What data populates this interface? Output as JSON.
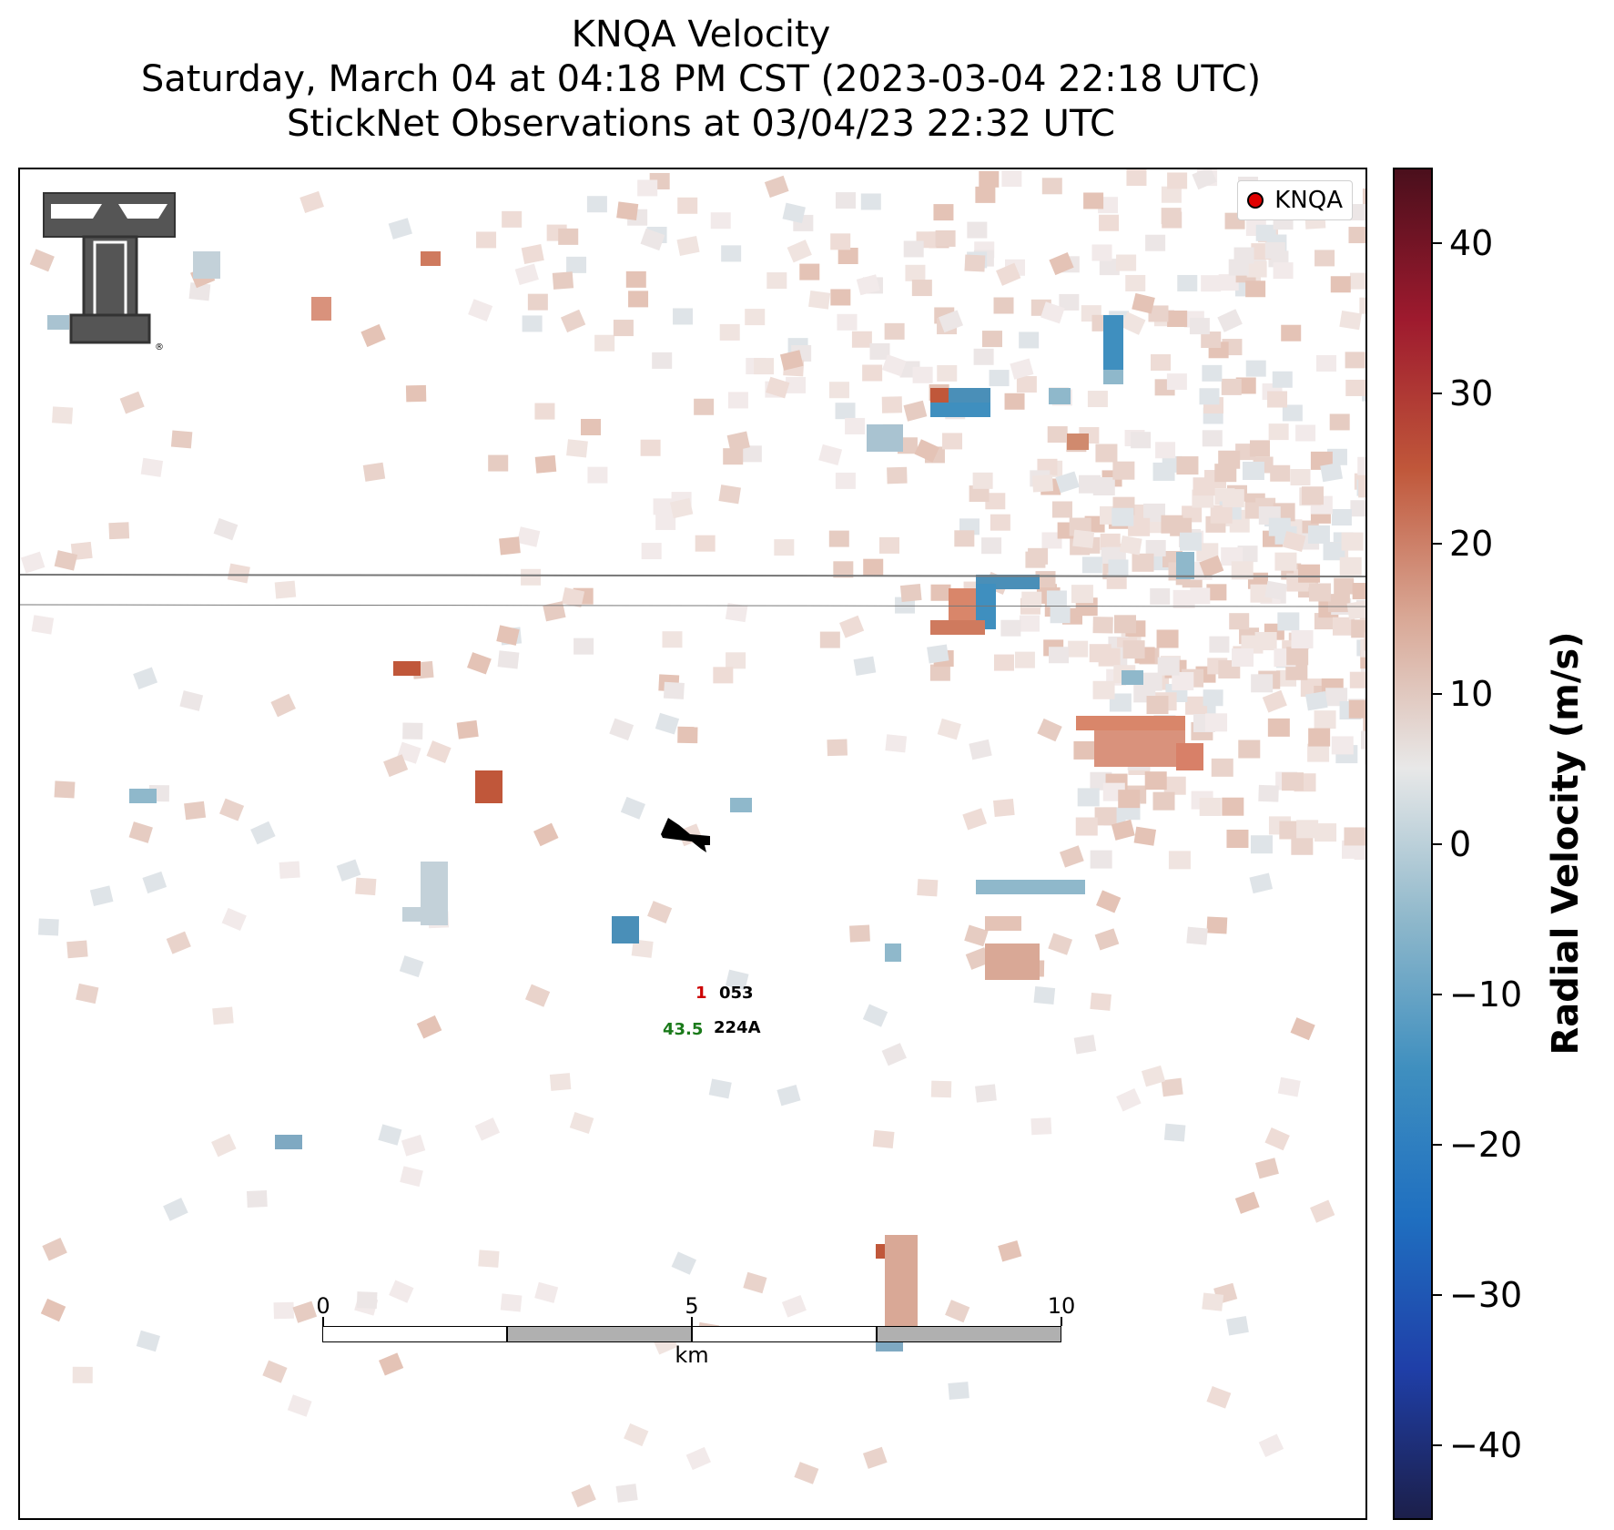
{
  "title": {
    "line1": "KNQA Velocity",
    "line2": "Saturday, March 04 at 04:18 PM CST (2023-03-04 22:18 UTC)",
    "line3": "StickNet Observations at 03/04/23 22:32 UTC"
  },
  "legend": {
    "label": "KNQA",
    "marker_color": "#e00000"
  },
  "colorbar": {
    "title": "Radial Velocity (m/s)",
    "min": -45,
    "max": 45,
    "ticks": [
      "40",
      "30",
      "20",
      "10",
      "0",
      "−10",
      "−20",
      "−30",
      "−40"
    ],
    "tick_values": [
      40,
      30,
      20,
      10,
      0,
      -10,
      -20,
      -30,
      -40
    ],
    "colors": [
      "#1c1f4a",
      "#1f3fa8",
      "#1f6fc0",
      "#3f8fbf",
      "#8fb8cb",
      "#e8e8e8",
      "#d9a896",
      "#c0573a",
      "#9e1a2e",
      "#4a0f1c"
    ]
  },
  "station": {
    "id": "224A",
    "id_secondary": "053",
    "value_green": "43.5",
    "value_red": "1"
  },
  "scalebar": {
    "labels": [
      "0",
      "5",
      "10"
    ],
    "unit": "km"
  },
  "logo": {
    "name": "Texas Tech Double T"
  }
}
